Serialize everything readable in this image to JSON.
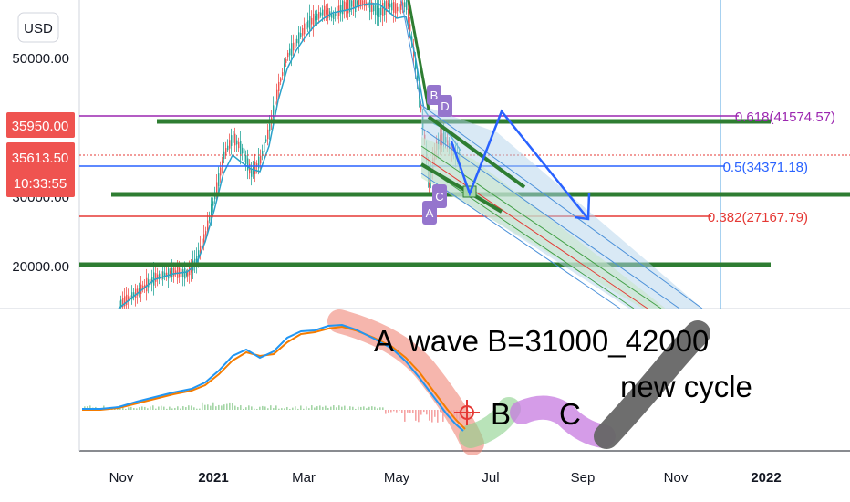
{
  "currency": "USD",
  "chart_data": {
    "type": "line",
    "price_axis_ticks": [
      "50000.00",
      "30000.00",
      "20000.00"
    ],
    "price_tags": {
      "high": "35950.00",
      "last": "35613.50",
      "countdown": "10:33:55"
    },
    "x_tick_labels": [
      "Nov",
      "2021",
      "Mar",
      "May",
      "Jul",
      "Sep",
      "Nov",
      "2022"
    ],
    "fib_levels": [
      {
        "label": "0.618(41574.57)",
        "value": 41574.57,
        "color": "#9c27b0"
      },
      {
        "label": "0.5(34371.18)",
        "value": 34371.18,
        "color": "#2962ff"
      },
      {
        "label": "0.382(27167.79)",
        "value": 27167.79,
        "color": "#e53935"
      }
    ],
    "point_labels": [
      "B",
      "D",
      "C",
      "A"
    ],
    "annotations": {
      "wave_a": "A",
      "wave_b_range": "wave B=31000_42000",
      "wave_b": "B",
      "wave_c": "C",
      "new_cycle": "new cycle"
    }
  }
}
